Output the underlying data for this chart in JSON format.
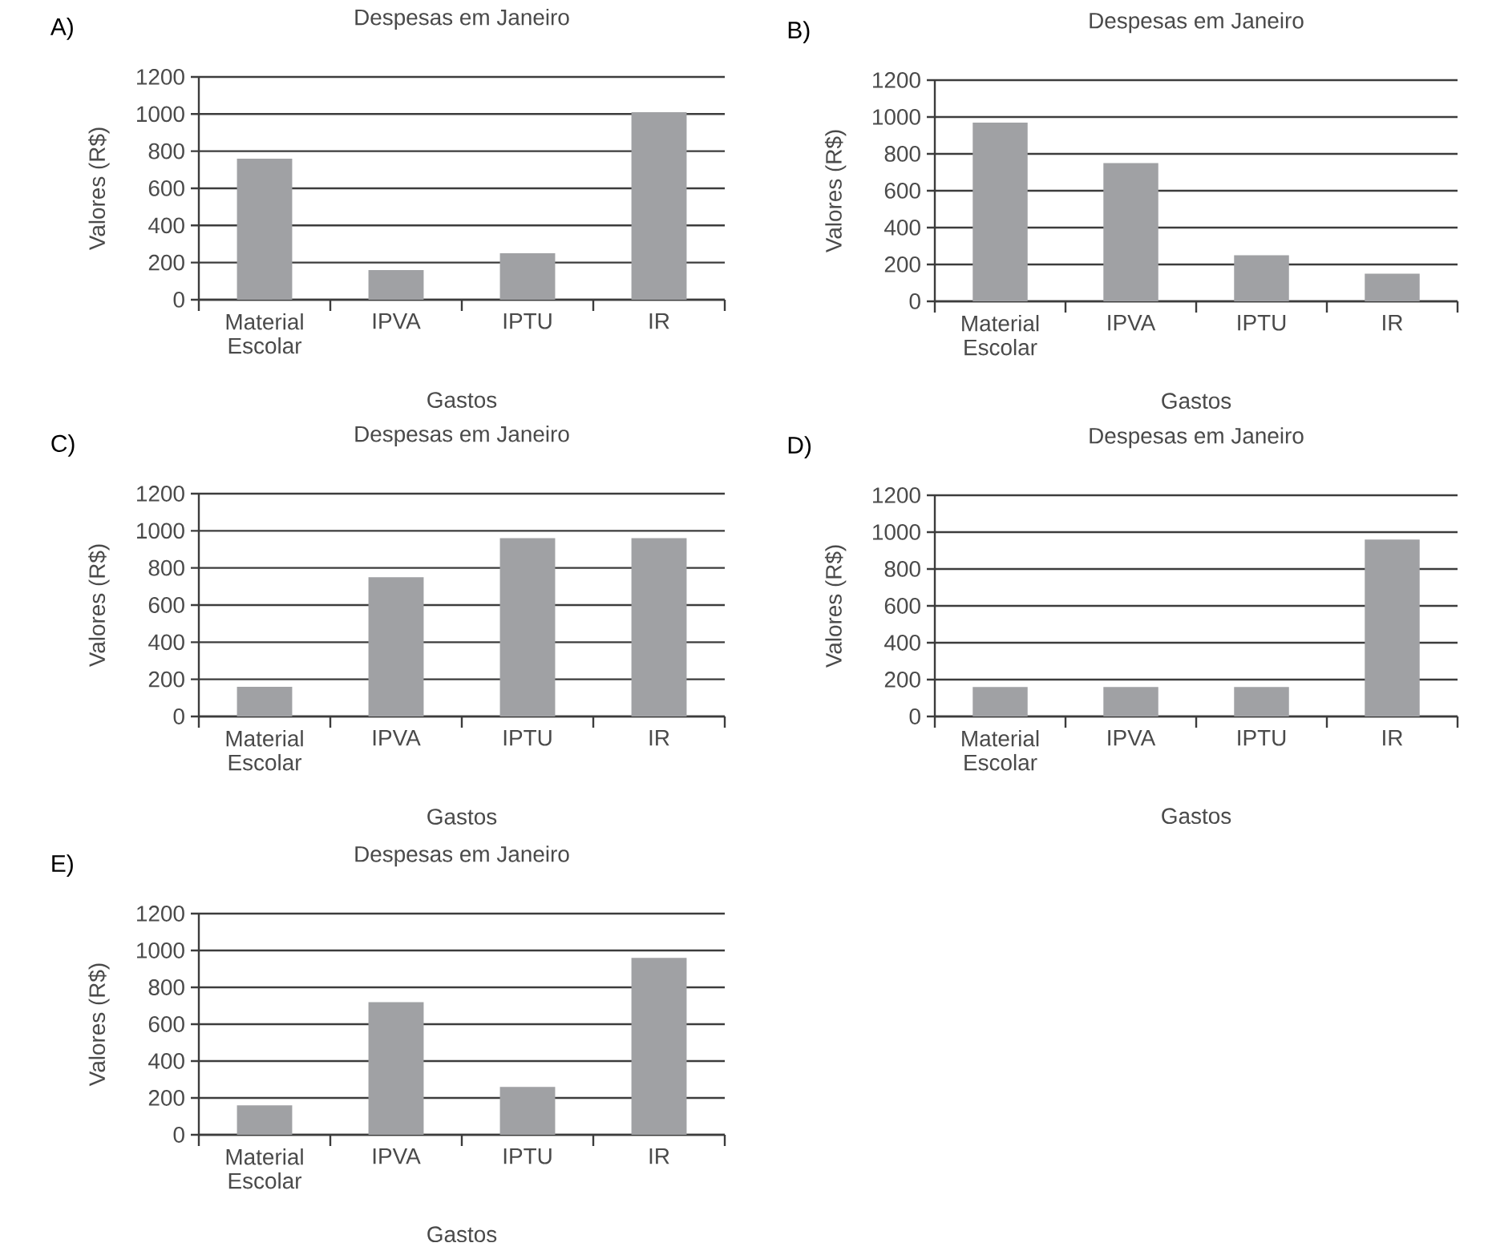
{
  "chart_data": [
    {
      "type": "bar",
      "title": "Despesas em Janeiro",
      "annotations": [
        "A)"
      ],
      "xlabel": "Gastos",
      "ylabel": "Valores (R$)",
      "categories": [
        "Material Escolar",
        "IPVA",
        "IPTU",
        "IR"
      ],
      "values": [
        760,
        160,
        250,
        1010
      ],
      "color": "#a0a1a4",
      "ylim": [
        0,
        1200
      ],
      "yticks": [
        0,
        200,
        400,
        600,
        800,
        1000,
        1200
      ],
      "grid": "y"
    },
    {
      "type": "bar",
      "title": "Despesas em Janeiro",
      "annotations": [
        "B)"
      ],
      "xlabel": "Gastos",
      "ylabel": "Valores (R$)",
      "categories": [
        "Material Escolar",
        "IPVA",
        "IPTU",
        "IR"
      ],
      "values": [
        970,
        750,
        250,
        150
      ],
      "color": "#a0a1a4",
      "ylim": [
        0,
        1200
      ],
      "yticks": [
        0,
        200,
        400,
        600,
        800,
        1000,
        1200
      ],
      "grid": "y"
    },
    {
      "type": "bar",
      "title": "Despesas em Janeiro",
      "annotations": [
        "C)"
      ],
      "xlabel": "Gastos",
      "ylabel": "Valores (R$)",
      "categories": [
        "Material Escolar",
        "IPVA",
        "IPTU",
        "IR"
      ],
      "values": [
        160,
        750,
        960,
        960
      ],
      "color": "#a0a1a4",
      "ylim": [
        0,
        1200
      ],
      "yticks": [
        0,
        200,
        400,
        600,
        800,
        1000,
        1200
      ],
      "grid": "y"
    },
    {
      "type": "bar",
      "title": "Despesas em Janeiro",
      "annotations": [
        "D)"
      ],
      "xlabel": "Gastos",
      "ylabel": "Valores (R$)",
      "categories": [
        "Material Escolar",
        "IPVA",
        "IPTU",
        "IR"
      ],
      "values": [
        160,
        160,
        160,
        960
      ],
      "color": "#a0a1a4",
      "ylim": [
        0,
        1200
      ],
      "yticks": [
        0,
        200,
        400,
        600,
        800,
        1000,
        1200
      ],
      "grid": "y"
    },
    {
      "type": "bar",
      "title": "Despesas em Janeiro",
      "annotations": [
        "E)"
      ],
      "xlabel": "Gastos",
      "ylabel": "Valores (R$)",
      "categories": [
        "Material Escolar",
        "IPVA",
        "IPTU",
        "IR"
      ],
      "values": [
        160,
        720,
        260,
        960
      ],
      "color": "#a0a1a4",
      "ylim": [
        0,
        1200
      ],
      "yticks": [
        0,
        200,
        400,
        600,
        800,
        1000,
        1200
      ],
      "grid": "y"
    }
  ]
}
